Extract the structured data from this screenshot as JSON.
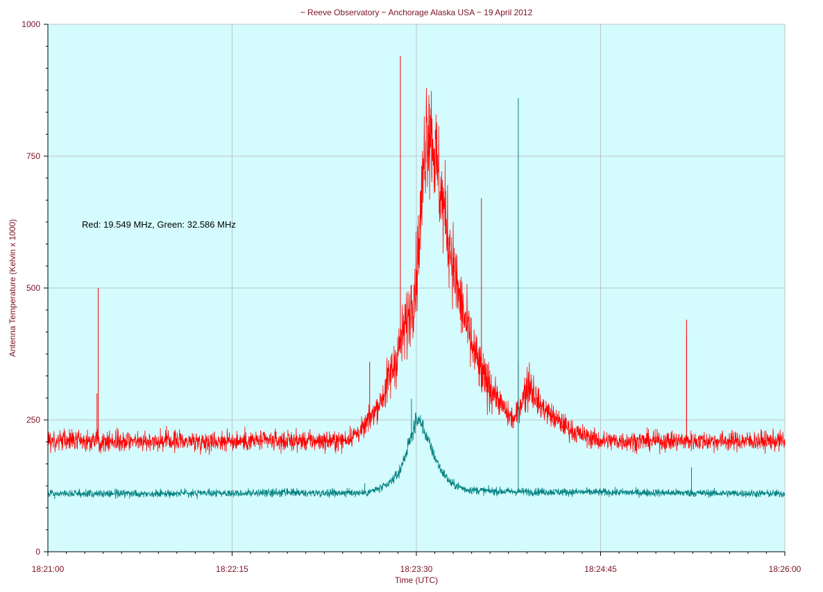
{
  "colors": {
    "plot_background": "#d4fbfd",
    "grid": "#b9c6c8",
    "text": "#7a1020",
    "series_red": "#ff0000",
    "series_green": "#008080"
  },
  "chart_data": {
    "type": "line",
    "title": "~ Reeve Observatory ~ Anchorage Alaska USA ~ 19 April 2012",
    "xlabel": "Time (UTC)",
    "ylabel": "Antenna Temperature (Kelvin x 1000)",
    "annotation": "Red: 19.549 MHz, Green: 32.586 MHz",
    "x_range_seconds": [
      0,
      300
    ],
    "ylim": [
      0,
      1000
    ],
    "grid": true,
    "legend": "none",
    "x_ticks": [
      {
        "t": 0,
        "label": "18:21:00"
      },
      {
        "t": 75,
        "label": "18:22:15"
      },
      {
        "t": 150,
        "label": "18:23:30"
      },
      {
        "t": 225,
        "label": "18:24:45"
      },
      {
        "t": 300,
        "label": "18:26:00"
      }
    ],
    "y_ticks": [
      {
        "v": 0,
        "label": "0"
      },
      {
        "v": 250,
        "label": "250"
      },
      {
        "v": 500,
        "label": "500"
      },
      {
        "v": 750,
        "label": "750"
      },
      {
        "v": 1000,
        "label": "1000"
      }
    ],
    "series": [
      {
        "name": "Red: 19.549 MHz",
        "color": "#ff0000",
        "baseline": 210,
        "noise": 18,
        "envelope": [
          [
            0,
            210
          ],
          [
            120,
            210
          ],
          [
            128,
            230
          ],
          [
            136,
            290
          ],
          [
            142,
            370
          ],
          [
            147,
            450
          ],
          [
            150,
            520
          ],
          [
            152,
            650
          ],
          [
            154,
            810
          ],
          [
            156,
            800
          ],
          [
            158,
            740
          ],
          [
            160,
            680
          ],
          [
            163,
            600
          ],
          [
            167,
            490
          ],
          [
            172,
            400
          ],
          [
            177,
            330
          ],
          [
            182,
            300
          ],
          [
            187,
            260
          ],
          [
            190,
            250
          ],
          [
            194,
            300
          ],
          [
            196,
            320
          ],
          [
            200,
            280
          ],
          [
            207,
            250
          ],
          [
            215,
            225
          ],
          [
            225,
            210
          ],
          [
            300,
            210
          ]
        ],
        "spikes": [
          [
            20.5,
            500
          ],
          [
            20,
            300
          ],
          [
            135,
            270
          ],
          [
            131,
            360
          ],
          [
            143.5,
            940
          ],
          [
            176.5,
            670
          ],
          [
            191.5,
            360
          ],
          [
            260,
            410
          ],
          [
            260,
            440
          ]
        ]
      },
      {
        "name": "Green: 32.586 MHz",
        "color": "#008080",
        "baseline": 110,
        "noise": 7,
        "envelope": [
          [
            0,
            110
          ],
          [
            130,
            112
          ],
          [
            138,
            125
          ],
          [
            143,
            150
          ],
          [
            146,
            190
          ],
          [
            148,
            220
          ],
          [
            150,
            250
          ],
          [
            152,
            245
          ],
          [
            154,
            220
          ],
          [
            157,
            185
          ],
          [
            160,
            155
          ],
          [
            164,
            130
          ],
          [
            170,
            118
          ],
          [
            180,
            115
          ],
          [
            190,
            114
          ],
          [
            300,
            110
          ]
        ],
        "spikes": [
          [
            191.5,
            860
          ],
          [
            129,
            130
          ],
          [
            148,
            290
          ],
          [
            262,
            160
          ]
        ]
      }
    ]
  }
}
